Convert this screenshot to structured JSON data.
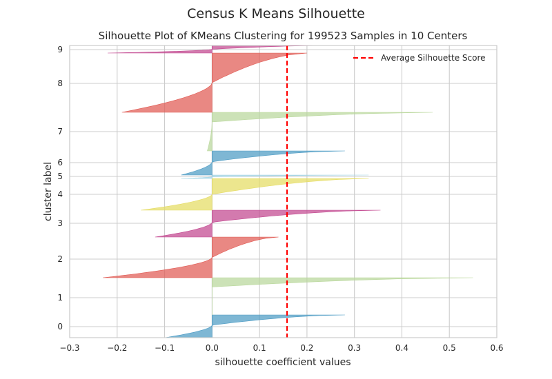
{
  "figure": {
    "suptitle": "Census K Means Silhouette"
  },
  "chart_data": {
    "type": "area",
    "title": "Silhouette Plot of KMeans Clustering for 199523 Samples in 10 Centers",
    "xlabel": "silhouette coefficient values",
    "ylabel": "cluster label",
    "xlim": [
      -0.3,
      0.6
    ],
    "xticks": [
      -0.3,
      -0.2,
      -0.1,
      0.0,
      0.1,
      0.2,
      0.3,
      0.4,
      0.5,
      0.6
    ],
    "xtick_labels": [
      "−0.3",
      "−0.2",
      "−0.1",
      "0.0",
      "0.1",
      "0.2",
      "0.3",
      "0.4",
      "0.5",
      "0.6"
    ],
    "grid": true,
    "legend_position": "top-right",
    "average_silhouette_score": 0.158,
    "average_line_label": "Average Silhouette Score",
    "average_line_color": "#ff0000",
    "clusters": [
      {
        "label": "0",
        "color": "#4c9bc4",
        "max": 0.28,
        "min": -0.1
      },
      {
        "label": "1",
        "color": "#b9d79b",
        "max": 0.55,
        "min": 0.0
      },
      {
        "label": "2",
        "color": "#e05a53",
        "max": 0.14,
        "min": -0.23
      },
      {
        "label": "3",
        "color": "#c2468f",
        "max": 0.355,
        "min": -0.12
      },
      {
        "label": "4",
        "color": "#e5dc63",
        "max": 0.33,
        "min": -0.15
      },
      {
        "label": "5",
        "color": "#9fd3e5",
        "max": 0.33,
        "min": -0.065
      },
      {
        "label": "6",
        "color": "#4c9bc4",
        "max": 0.28,
        "min": -0.065
      },
      {
        "label": "7",
        "color": "#b9d79b",
        "max": 0.465,
        "min": -0.01
      },
      {
        "label": "8",
        "color": "#e05a53",
        "max": 0.2,
        "min": -0.19
      },
      {
        "label": "9",
        "color": "#c2468f",
        "max": 0.245,
        "min": -0.22
      }
    ]
  }
}
